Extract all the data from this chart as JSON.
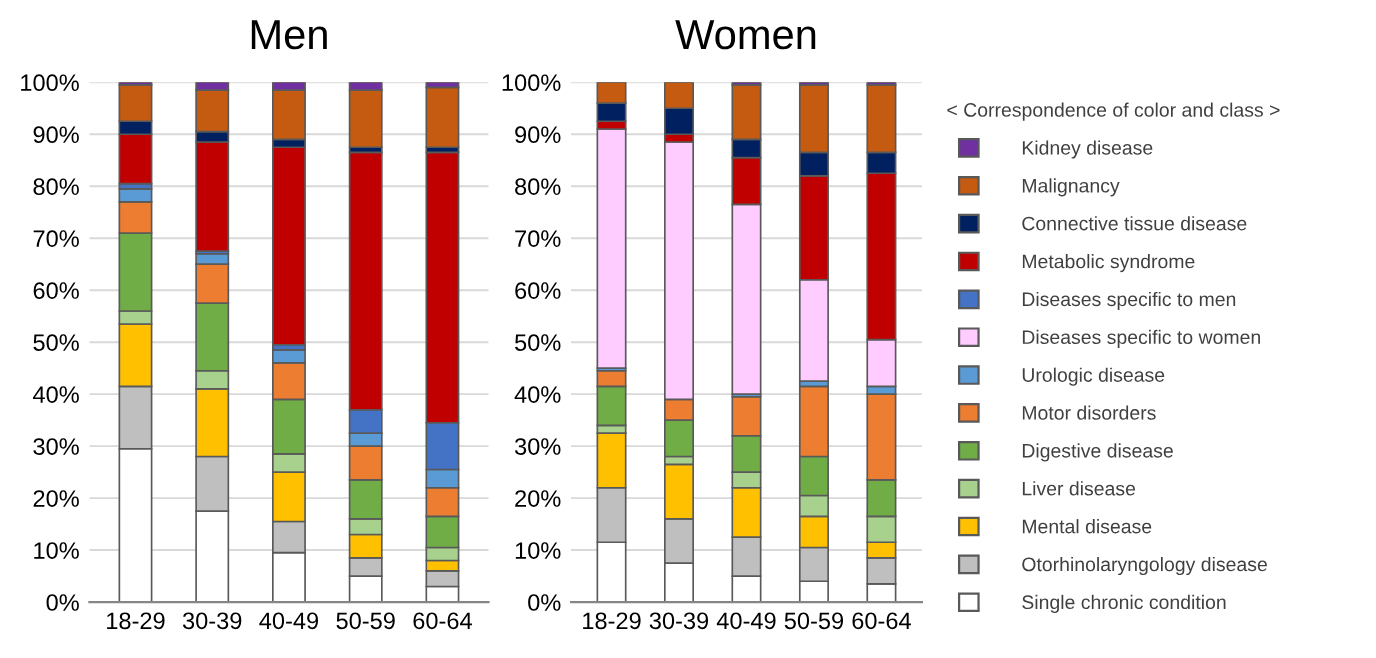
{
  "chart_data": [
    {
      "type": "bar",
      "title": "Men",
      "stacked": true,
      "categories": [
        "18-29",
        "30-39",
        "40-49",
        "50-59",
        "60-64"
      ],
      "ylim": [
        0,
        100
      ],
      "yticks": [
        {
          "value": 0,
          "label": "0%"
        },
        {
          "value": 10,
          "label": "10%"
        },
        {
          "value": 20,
          "label": "20%"
        },
        {
          "value": 30,
          "label": "30%"
        },
        {
          "value": 40,
          "label": "40%"
        },
        {
          "value": 50,
          "label": "50%"
        },
        {
          "value": 60,
          "label": "60%"
        },
        {
          "value": 70,
          "label": "70%"
        },
        {
          "value": 80,
          "label": "80%"
        },
        {
          "value": 90,
          "label": "90%"
        },
        {
          "value": 100,
          "label": "100%"
        }
      ],
      "grid": "y",
      "series": [
        {
          "color": "#ffffff",
          "values": [
            29.5,
            17.5,
            9.5,
            5,
            3
          ]
        },
        {
          "color": "#bfbfbf",
          "values": [
            12,
            10.5,
            6,
            3.5,
            3
          ]
        },
        {
          "color": "#ffc000",
          "values": [
            12,
            13,
            9.5,
            4.5,
            2
          ]
        },
        {
          "color": "#a9d18e",
          "values": [
            2.5,
            3.5,
            3.5,
            3,
            2.5
          ]
        },
        {
          "color": "#70ad47",
          "values": [
            15,
            13,
            10.5,
            7.5,
            6
          ]
        },
        {
          "color": "#ed7d31",
          "values": [
            6,
            7.5,
            7,
            6.5,
            5.5
          ]
        },
        {
          "color": "#5b9bd5",
          "values": [
            2.5,
            2,
            2.5,
            2.5,
            3.5
          ]
        },
        {
          "color": "#4472c4",
          "values": [
            1,
            0.5,
            1,
            4.5,
            9
          ]
        },
        {
          "color": "#c00000",
          "values": [
            9.5,
            21,
            38,
            49.5,
            52
          ]
        },
        {
          "color": "#002060",
          "values": [
            2.5,
            2,
            1.5,
            1,
            1
          ]
        },
        {
          "color": "#c55a11",
          "values": [
            7,
            8,
            9.5,
            11,
            11.5
          ]
        },
        {
          "color": "#7030a0",
          "values": [
            0.5,
            1.5,
            1.5,
            1.5,
            1
          ]
        }
      ]
    },
    {
      "type": "bar",
      "title": "Women",
      "stacked": true,
      "categories": [
        "18-29",
        "30-39",
        "40-49",
        "50-59",
        "60-64"
      ],
      "ylim": [
        0,
        100
      ],
      "yticks": [
        {
          "value": 0,
          "label": "0%"
        },
        {
          "value": 10,
          "label": "10%"
        },
        {
          "value": 20,
          "label": "20%"
        },
        {
          "value": 30,
          "label": "30%"
        },
        {
          "value": 40,
          "label": "40%"
        },
        {
          "value": 50,
          "label": "50%"
        },
        {
          "value": 60,
          "label": "60%"
        },
        {
          "value": 70,
          "label": "70%"
        },
        {
          "value": 80,
          "label": "80%"
        },
        {
          "value": 90,
          "label": "90%"
        },
        {
          "value": 100,
          "label": "100%"
        }
      ],
      "grid": "y",
      "legend": "right",
      "legend_title": "< Correspondence of color and class >",
      "series": [
        {
          "name": "Single chronic condition",
          "color": "#ffffff",
          "values": [
            11.5,
            7.5,
            5,
            4,
            3.5
          ]
        },
        {
          "name": "Otorhinolaryngology disease",
          "color": "#bfbfbf",
          "values": [
            10.5,
            8.5,
            7.5,
            6.5,
            5
          ]
        },
        {
          "name": "Mental disease",
          "color": "#ffc000",
          "values": [
            10.5,
            10.5,
            9.5,
            6,
            3
          ]
        },
        {
          "name": "Liver disease",
          "color": "#a9d18e",
          "values": [
            1.5,
            1.5,
            3,
            4,
            5
          ]
        },
        {
          "name": "Digestive disease",
          "color": "#70ad47",
          "values": [
            7.5,
            7,
            7,
            7.5,
            7
          ]
        },
        {
          "name": "Motor disorders",
          "color": "#ed7d31",
          "values": [
            3,
            4,
            7.5,
            13.5,
            16.5
          ]
        },
        {
          "name": "Urologic disease",
          "color": "#5b9bd5",
          "values": [
            0.5,
            null,
            0.5,
            1,
            1.5
          ]
        },
        {
          "name": "Diseases specific to women",
          "color": "#ffccff",
          "values": [
            46,
            49.5,
            36.5,
            19.5,
            9
          ]
        },
        {
          "name": "Diseases specific to men",
          "color": "#4472c4",
          "values": [
            null,
            null,
            null,
            null,
            null
          ]
        },
        {
          "name": "Metabolic syndrome",
          "color": "#c00000",
          "values": [
            1.5,
            1.5,
            9,
            20,
            32
          ]
        },
        {
          "name": "Connective tissue disease",
          "color": "#002060",
          "values": [
            3.5,
            5,
            3.5,
            4.5,
            4
          ]
        },
        {
          "name": "Malignancy",
          "color": "#c55a11",
          "values": [
            4,
            5,
            10.5,
            13,
            13
          ]
        },
        {
          "name": "Kidney disease",
          "color": "#7030a0",
          "values": [
            null,
            null,
            0.5,
            0.5,
            0.5
          ]
        }
      ]
    }
  ]
}
